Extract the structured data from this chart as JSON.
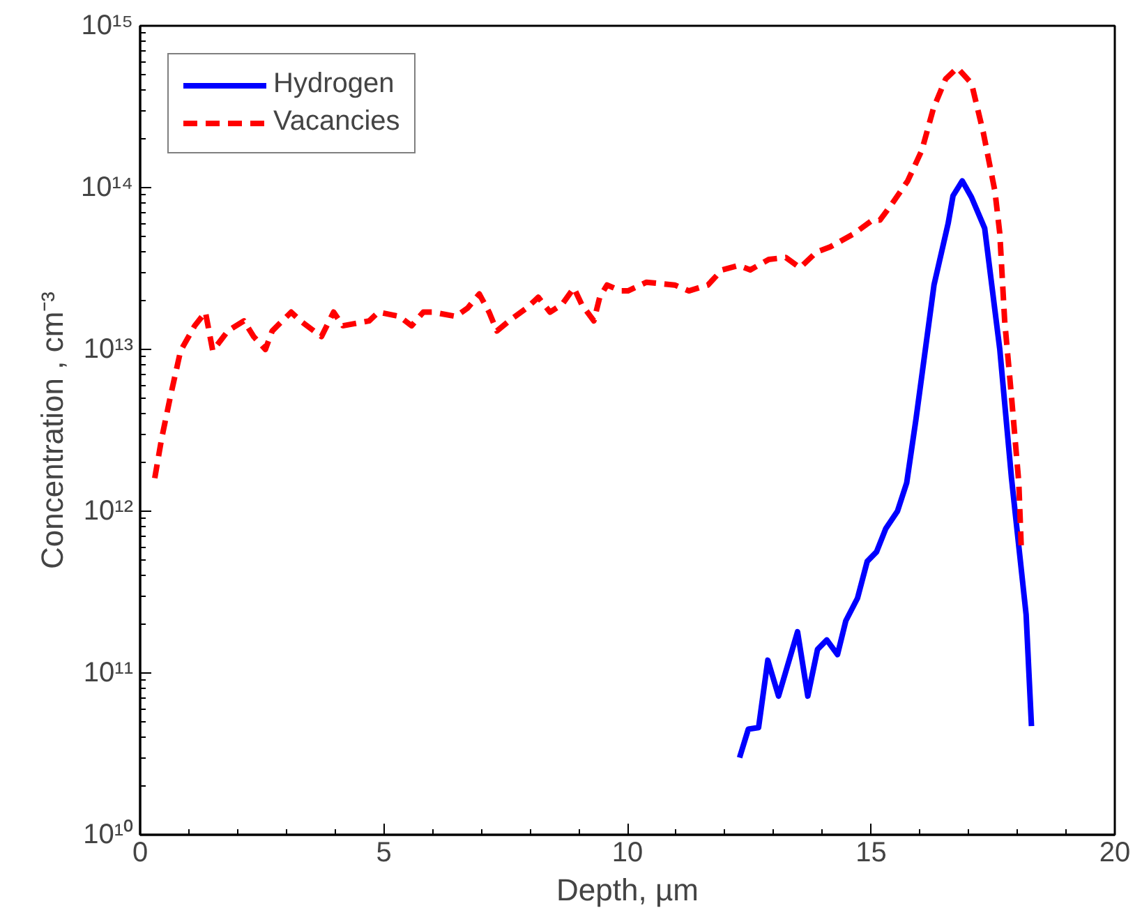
{
  "chart_data": {
    "type": "line",
    "xlabel": "Depth, µm",
    "ylabel": "Concentration , cm⁻³",
    "log": "y",
    "grid": false,
    "legend": "top left",
    "xlim": [
      0,
      20
    ],
    "ylim": [
      10000000000.0,
      1000000000000000.0
    ],
    "xticks": [
      0,
      5,
      10,
      15,
      20
    ],
    "yticks": [
      {
        "value": 10000000000.0,
        "label": "10¹⁰"
      },
      {
        "value": 100000000000.0,
        "label": "10¹¹"
      },
      {
        "value": 1000000000000.0,
        "label": "10¹²"
      },
      {
        "value": 10000000000000.0,
        "label": "10¹³"
      },
      {
        "value": 100000000000000.0,
        "label": "10¹⁴"
      },
      {
        "value": 1000000000000000.0,
        "label": "10¹⁵"
      }
    ],
    "series": [
      {
        "name": "Hydrogen",
        "color": "#0000ff",
        "line_style": "solid",
        "x": [
          12.3,
          12.48,
          12.69,
          12.88,
          13.1,
          13.49,
          13.7,
          13.9,
          14.09,
          14.31,
          14.48,
          14.72,
          14.92,
          15.11,
          15.3,
          15.54,
          15.73,
          15.92,
          16.29,
          16.58,
          16.68,
          16.87,
          17.06,
          17.33,
          17.64,
          17.88,
          18.18,
          18.29
        ],
        "values": [
          30000000000.0,
          45000000000.0,
          46000000000.0,
          120000000000.0,
          72000000000.0,
          180000000000.0,
          72000000000.0,
          140000000000.0,
          160000000000.0,
          130000000000.0,
          210000000000.0,
          290000000000.0,
          490000000000.0,
          560000000000.0,
          780000000000.0,
          1000000000000.0,
          1500000000000.0,
          3700000000000.0,
          25000000000000.0,
          60000000000000.0,
          89000000000000.0,
          110000000000000.0,
          87000000000000.0,
          56000000000000.0,
          10000000000000.0,
          1600000000000.0,
          230000000000.0,
          47000000000.0
        ]
      },
      {
        "name": "Vacancies",
        "color": "#ff0000",
        "line_style": "dashed",
        "x": [
          0.3,
          0.44,
          0.62,
          0.83,
          1.12,
          1.34,
          1.49,
          1.8,
          2.13,
          2.33,
          2.57,
          2.71,
          3.1,
          3.29,
          3.72,
          3.97,
          4.16,
          4.7,
          4.89,
          5.32,
          5.57,
          5.81,
          6.0,
          6.48,
          6.72,
          6.96,
          7.16,
          7.32,
          7.57,
          7.93,
          8.17,
          8.41,
          8.66,
          8.9,
          9.06,
          9.31,
          9.43,
          9.58,
          9.86,
          10.01,
          10.39,
          10.97,
          11.26,
          11.65,
          11.94,
          12.28,
          12.52,
          12.9,
          13.25,
          13.54,
          13.88,
          14.16,
          14.65,
          15.03,
          15.18,
          15.41,
          15.75,
          16.04,
          16.28,
          16.53,
          16.77,
          17.06,
          17.3,
          17.54,
          17.64,
          17.74,
          17.88,
          18.03,
          18.08
        ],
        "values": [
          1600000000000.0,
          2800000000000.0,
          5100000000000.0,
          9800000000000.0,
          14000000000000.0,
          17000000000000.0,
          9800000000000.0,
          13000000000000.0,
          15000000000000.0,
          12000000000000.0,
          10000000000000.0,
          13000000000000.0,
          17000000000000.0,
          15000000000000.0,
          12000000000000.0,
          17000000000000.0,
          14000000000000.0,
          15000000000000.0,
          17000000000000.0,
          16000000000000.0,
          14000000000000.0,
          17000000000000.0,
          17000000000000.0,
          16000000000000.0,
          18000000000000.0,
          22000000000000.0,
          17000000000000.0,
          13000000000000.0,
          15000000000000.0,
          18000000000000.0,
          21000000000000.0,
          17000000000000.0,
          19000000000000.0,
          24000000000000.0,
          19000000000000.0,
          15000000000000.0,
          21000000000000.0,
          25000000000000.0,
          23000000000000.0,
          23000000000000.0,
          26000000000000.0,
          25000000000000.0,
          23000000000000.0,
          25000000000000.0,
          31000000000000.0,
          33000000000000.0,
          31000000000000.0,
          36000000000000.0,
          37000000000000.0,
          32000000000000.0,
          40000000000000.0,
          43000000000000.0,
          52000000000000.0,
          63000000000000.0,
          63000000000000.0,
          78000000000000.0,
          110000000000000.0,
          170000000000000.0,
          310000000000000.0,
          470000000000000.0,
          550000000000000.0,
          440000000000000.0,
          220000000000000.0,
          95000000000000.0,
          52000000000000.0,
          15000000000000.0,
          5100000000000.0,
          1500000000000.0,
          600000000000.0
        ]
      }
    ]
  }
}
